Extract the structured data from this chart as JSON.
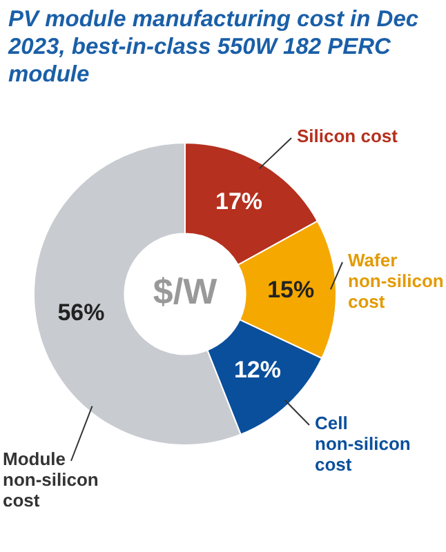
{
  "chart_data": {
    "type": "donut",
    "title": "PV module manufacturing cost in Dec 2023, best-in-class 550W 182 PERC module",
    "categories": [
      "Silicon cost",
      "Wafer non-silicon cost",
      "Cell non-silicon cost",
      "Module non-silicon cost"
    ],
    "values": [
      17,
      15,
      12,
      56
    ],
    "colors": [
      "#b5301e",
      "#f5a800",
      "#0a4f9c",
      "#c8cbd0"
    ],
    "value_labels": [
      "17%",
      "15%",
      "12%",
      "56%"
    ],
    "annotations": [
      "$/W"
    ],
    "legend": false
  }
}
